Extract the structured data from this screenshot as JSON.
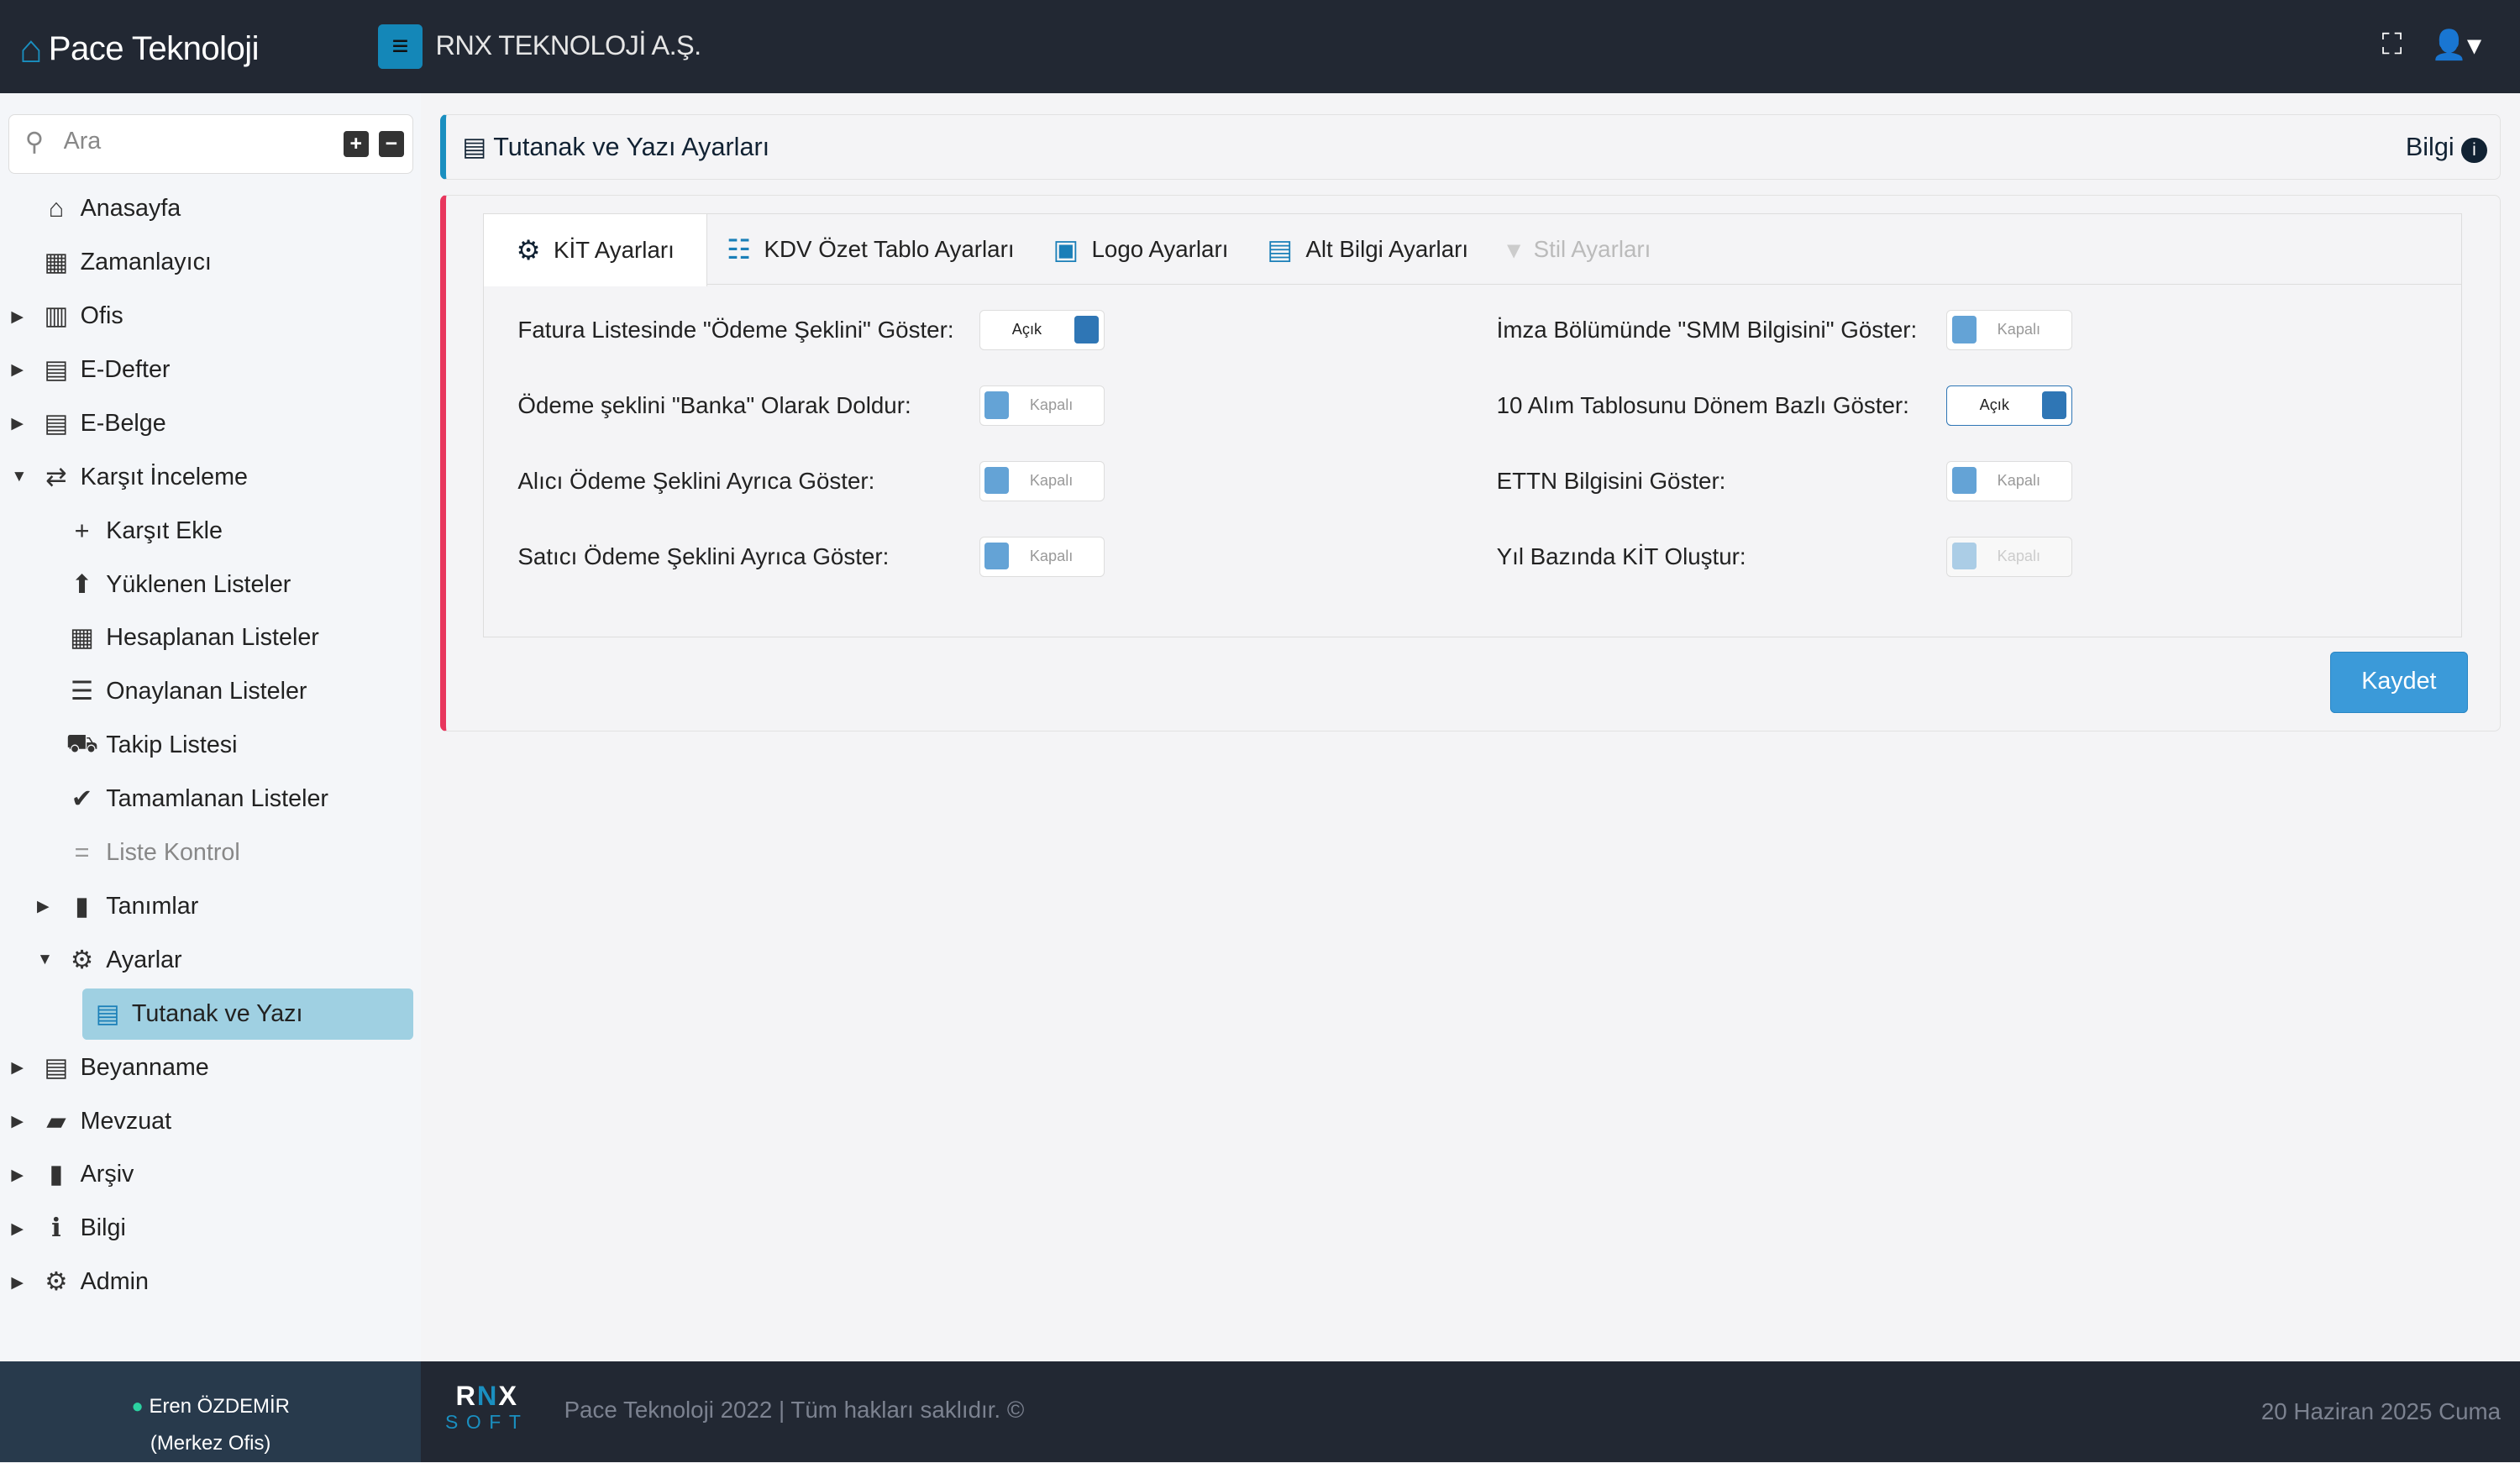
{
  "header": {
    "brand": "Pace Teknoloji",
    "company": "RNX TEKNOLOJİ A.Ş."
  },
  "sidebar": {
    "search_placeholder": "Ara",
    "items": [
      {
        "label": "Anasayfa",
        "icon": "home-icon",
        "glyph": "⌂",
        "level": 0,
        "caret": ""
      },
      {
        "label": "Zamanlayıcı",
        "icon": "calendar-icon",
        "glyph": "▦",
        "level": 0,
        "caret": ""
      },
      {
        "label": "Ofis",
        "icon": "building-icon",
        "glyph": "▥",
        "level": 0,
        "caret": "▶"
      },
      {
        "label": "E-Defter",
        "icon": "book-icon",
        "glyph": "▤",
        "level": 0,
        "caret": "▶"
      },
      {
        "label": "E-Belge",
        "icon": "document-icon",
        "glyph": "▤",
        "level": 0,
        "caret": "▶"
      },
      {
        "label": "Karşıt İnceleme",
        "icon": "exchange-icon",
        "glyph": "⇄",
        "level": 0,
        "caret": "▼"
      },
      {
        "label": "Karşıt Ekle",
        "icon": "plus-icon",
        "glyph": "+",
        "level": 1,
        "caret": ""
      },
      {
        "label": "Yüklenen Listeler",
        "icon": "upload-icon",
        "glyph": "⬆",
        "level": 1,
        "caret": ""
      },
      {
        "label": "Hesaplanan Listeler",
        "icon": "calculator-icon",
        "glyph": "▦",
        "level": 1,
        "caret": ""
      },
      {
        "label": "Onaylanan Listeler",
        "icon": "checklist-icon",
        "glyph": "☰",
        "level": 1,
        "caret": ""
      },
      {
        "label": "Takip Listesi",
        "icon": "truck-icon",
        "glyph": "⛟",
        "level": 1,
        "caret": ""
      },
      {
        "label": "Tamamlanan Listeler",
        "icon": "check-circle-icon",
        "glyph": "✔",
        "level": 1,
        "caret": ""
      },
      {
        "label": "Liste Kontrol",
        "icon": "equals-icon",
        "glyph": "=",
        "level": 1,
        "caret": "",
        "dim": true
      },
      {
        "label": "Tanımlar",
        "icon": "file-icon",
        "glyph": "▮",
        "level": 1,
        "caret": "▶"
      },
      {
        "label": "Ayarlar",
        "icon": "gears-icon",
        "glyph": "⚙",
        "level": 1,
        "caret": "▼"
      },
      {
        "label": "Tutanak ve Yazı",
        "icon": "file-text-icon",
        "glyph": "▤",
        "level": 2,
        "caret": "",
        "active": true
      },
      {
        "label": "Beyanname",
        "icon": "file-text-icon",
        "glyph": "▤",
        "level": 0,
        "caret": "▶"
      },
      {
        "label": "Mevzuat",
        "icon": "folder-open-icon",
        "glyph": "▰",
        "level": 0,
        "caret": "▶"
      },
      {
        "label": "Arşiv",
        "icon": "file-icon",
        "glyph": "▮",
        "level": 0,
        "caret": "▶"
      },
      {
        "label": "Bilgi",
        "icon": "info-circle-icon",
        "glyph": "ℹ",
        "level": 0,
        "caret": "▶"
      },
      {
        "label": "Admin",
        "icon": "gears-icon",
        "glyph": "⚙",
        "level": 0,
        "caret": "▶"
      }
    ],
    "user_name": "Eren ÖZDEMİR",
    "user_office": "(Merkez Ofis)"
  },
  "page": {
    "title": "Tutanak ve Yazı Ayarları",
    "info_label": "Bilgi"
  },
  "tabs": [
    {
      "label": "KİT Ayarları",
      "icon": "gear-icon",
      "glyph": "⚙",
      "active": true
    },
    {
      "label": "KDV Özet Tablo Ayarları",
      "icon": "list-icon",
      "glyph": "☷"
    },
    {
      "label": "Logo Ayarları",
      "icon": "image-icon",
      "glyph": "▣"
    },
    {
      "label": "Alt Bilgi Ayarları",
      "icon": "id-card-icon",
      "glyph": "▤"
    },
    {
      "label": "Stil Ayarları",
      "icon": "paint-brush-icon",
      "glyph": "▾",
      "disabled": true
    }
  ],
  "settings": [
    {
      "label": "Fatura Listesinde \"Ödeme Şeklini\" Göster:",
      "state": "Açık",
      "on": true
    },
    {
      "label": "Ödeme şeklini \"Banka\" Olarak Doldur:",
      "state": "Kapalı",
      "on": false
    },
    {
      "label": "Alıcı Ödeme Şeklini Ayrıca Göster:",
      "state": "Kapalı",
      "on": false
    },
    {
      "label": "Satıcı Ödeme Şeklini Ayrıca Göster:",
      "state": "Kapalı",
      "on": false
    },
    {
      "label": "İmza Bölümünde \"SMM Bilgisini\" Göster:",
      "state": "Kapalı",
      "on": false
    },
    {
      "label": "10 Alım Tablosunu Dönem Bazlı Göster:",
      "state": "Açık",
      "on": true,
      "focused": true
    },
    {
      "label": "ETTN Bilgisini Göster:",
      "state": "Kapalı",
      "on": false
    },
    {
      "label": "Yıl Bazında KİT Oluştur:",
      "state": "Kapalı",
      "on": false,
      "disabled": true
    }
  ],
  "save_label": "Kaydet",
  "footer": {
    "logo_text": "RNX SOFT",
    "copyright": "Pace Teknoloji 2022 | Tüm hakları saklıdır. ©",
    "date": "20 Haziran 2025 Cuma"
  },
  "colors": {
    "header": "#222833",
    "accent": "#1a8fc0",
    "danger": "#e8365d",
    "toggle_on": "#2f76b5",
    "save": "#3b9ad9"
  }
}
